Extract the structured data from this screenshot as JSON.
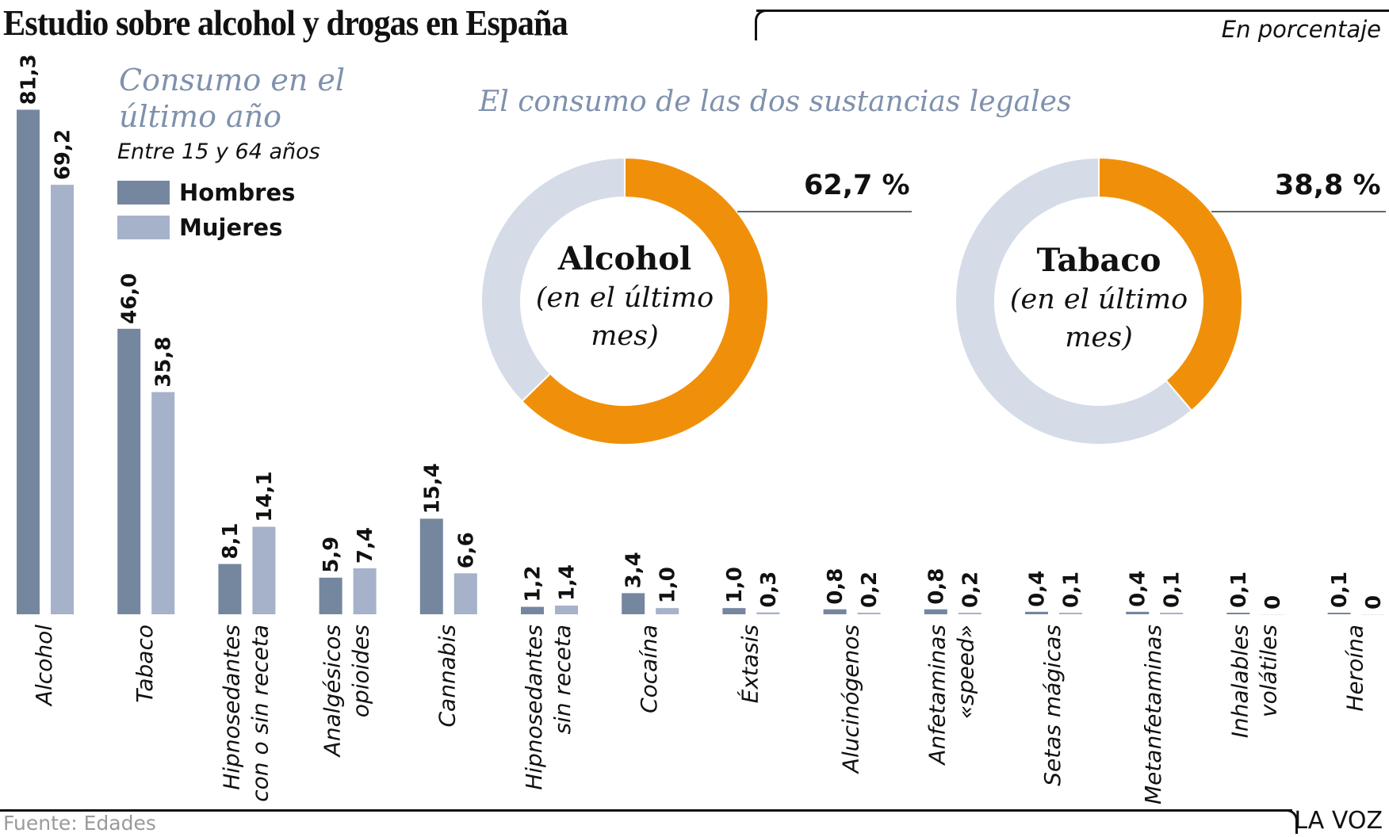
{
  "header": {
    "title": "Estudio sobre alcohol y drogas en España",
    "unit_note": "En porcentaje"
  },
  "legend": {
    "title": "Consumo en el último año",
    "subtitle": "Entre 15 y 64 años",
    "items": [
      {
        "label": "Hombres",
        "color": "#75869f"
      },
      {
        "label": "Mujeres",
        "color": "#a5b2c9"
      }
    ]
  },
  "donuts_heading": "El consumo de las dos sustancias legales",
  "footer": {
    "source": "Fuente: Edades",
    "brand": "LA VOZ"
  },
  "chart_data": [
    {
      "type": "bar",
      "title": "Consumo en el último año",
      "subtitle": "Entre 15 y 64 años",
      "unit": "%",
      "categories": [
        "Alcohol",
        "Tabaco",
        "Hipnosedantes con o sin receta",
        "Analgésicos opioides",
        "Cannabis",
        "Hipnosedantes sin receta",
        "Cocaína",
        "Éxtasis",
        "Alucinógenos",
        "Anfetaminas «speed»",
        "Setas mágicas",
        "Metanfetaminas",
        "Inhalables volátiles",
        "Heroína"
      ],
      "category_lines": [
        [
          "Alcohol"
        ],
        [
          "Tabaco"
        ],
        [
          "Hipnosedantes",
          "con o sin receta"
        ],
        [
          "Analgésicos",
          "opioides"
        ],
        [
          "Cannabis"
        ],
        [
          "Hipnosedantes",
          "sin receta"
        ],
        [
          "Cocaína"
        ],
        [
          "Éxtasis"
        ],
        [
          "Alucinógenos"
        ],
        [
          "Anfetaminas",
          "«speed»"
        ],
        [
          "Setas mágicas"
        ],
        [
          "Metanfetaminas"
        ],
        [
          "Inhalables",
          "volátiles"
        ],
        [
          "Heroína"
        ]
      ],
      "series": [
        {
          "name": "Hombres",
          "color": "#75869f",
          "values": [
            81.3,
            46.0,
            8.1,
            5.9,
            15.4,
            1.2,
            3.4,
            1.0,
            0.8,
            0.8,
            0.4,
            0.4,
            0.1,
            0.1
          ],
          "labels": [
            "81,3",
            "46,0",
            "8,1",
            "5,9",
            "15,4",
            "1,2",
            "3,4",
            "1,0",
            "0,8",
            "0,8",
            "0,4",
            "0,4",
            "0,1",
            "0,1"
          ]
        },
        {
          "name": "Mujeres",
          "color": "#a5b2c9",
          "values": [
            69.2,
            35.8,
            14.1,
            7.4,
            6.6,
            1.4,
            1.0,
            0.3,
            0.2,
            0.2,
            0.1,
            0.1,
            0,
            0
          ],
          "labels": [
            "69,2",
            "35,8",
            "14,1",
            "7,4",
            "6,6",
            "1,4",
            "1,0",
            "0,3",
            "0,2",
            "0,2",
            "0,1",
            "0,1",
            "0",
            "0"
          ]
        }
      ],
      "ylim": [
        0,
        100
      ],
      "grid": false,
      "legend": "top-left"
    },
    {
      "type": "pie",
      "variant": "donut",
      "name": "Alcohol",
      "description": "(en el último mes)",
      "desc_lines": [
        "(en el último",
        "mes)"
      ],
      "value": 62.7,
      "value_label": "62,7 %",
      "colors": {
        "value": "#f0900a",
        "rest": "#d5dce8"
      }
    },
    {
      "type": "pie",
      "variant": "donut",
      "name": "Tabaco",
      "description": "(en el último mes)",
      "desc_lines": [
        "(en el último",
        "mes)"
      ],
      "value": 38.8,
      "value_label": "38,8 %",
      "colors": {
        "value": "#f0900a",
        "rest": "#d5dce8"
      }
    }
  ]
}
